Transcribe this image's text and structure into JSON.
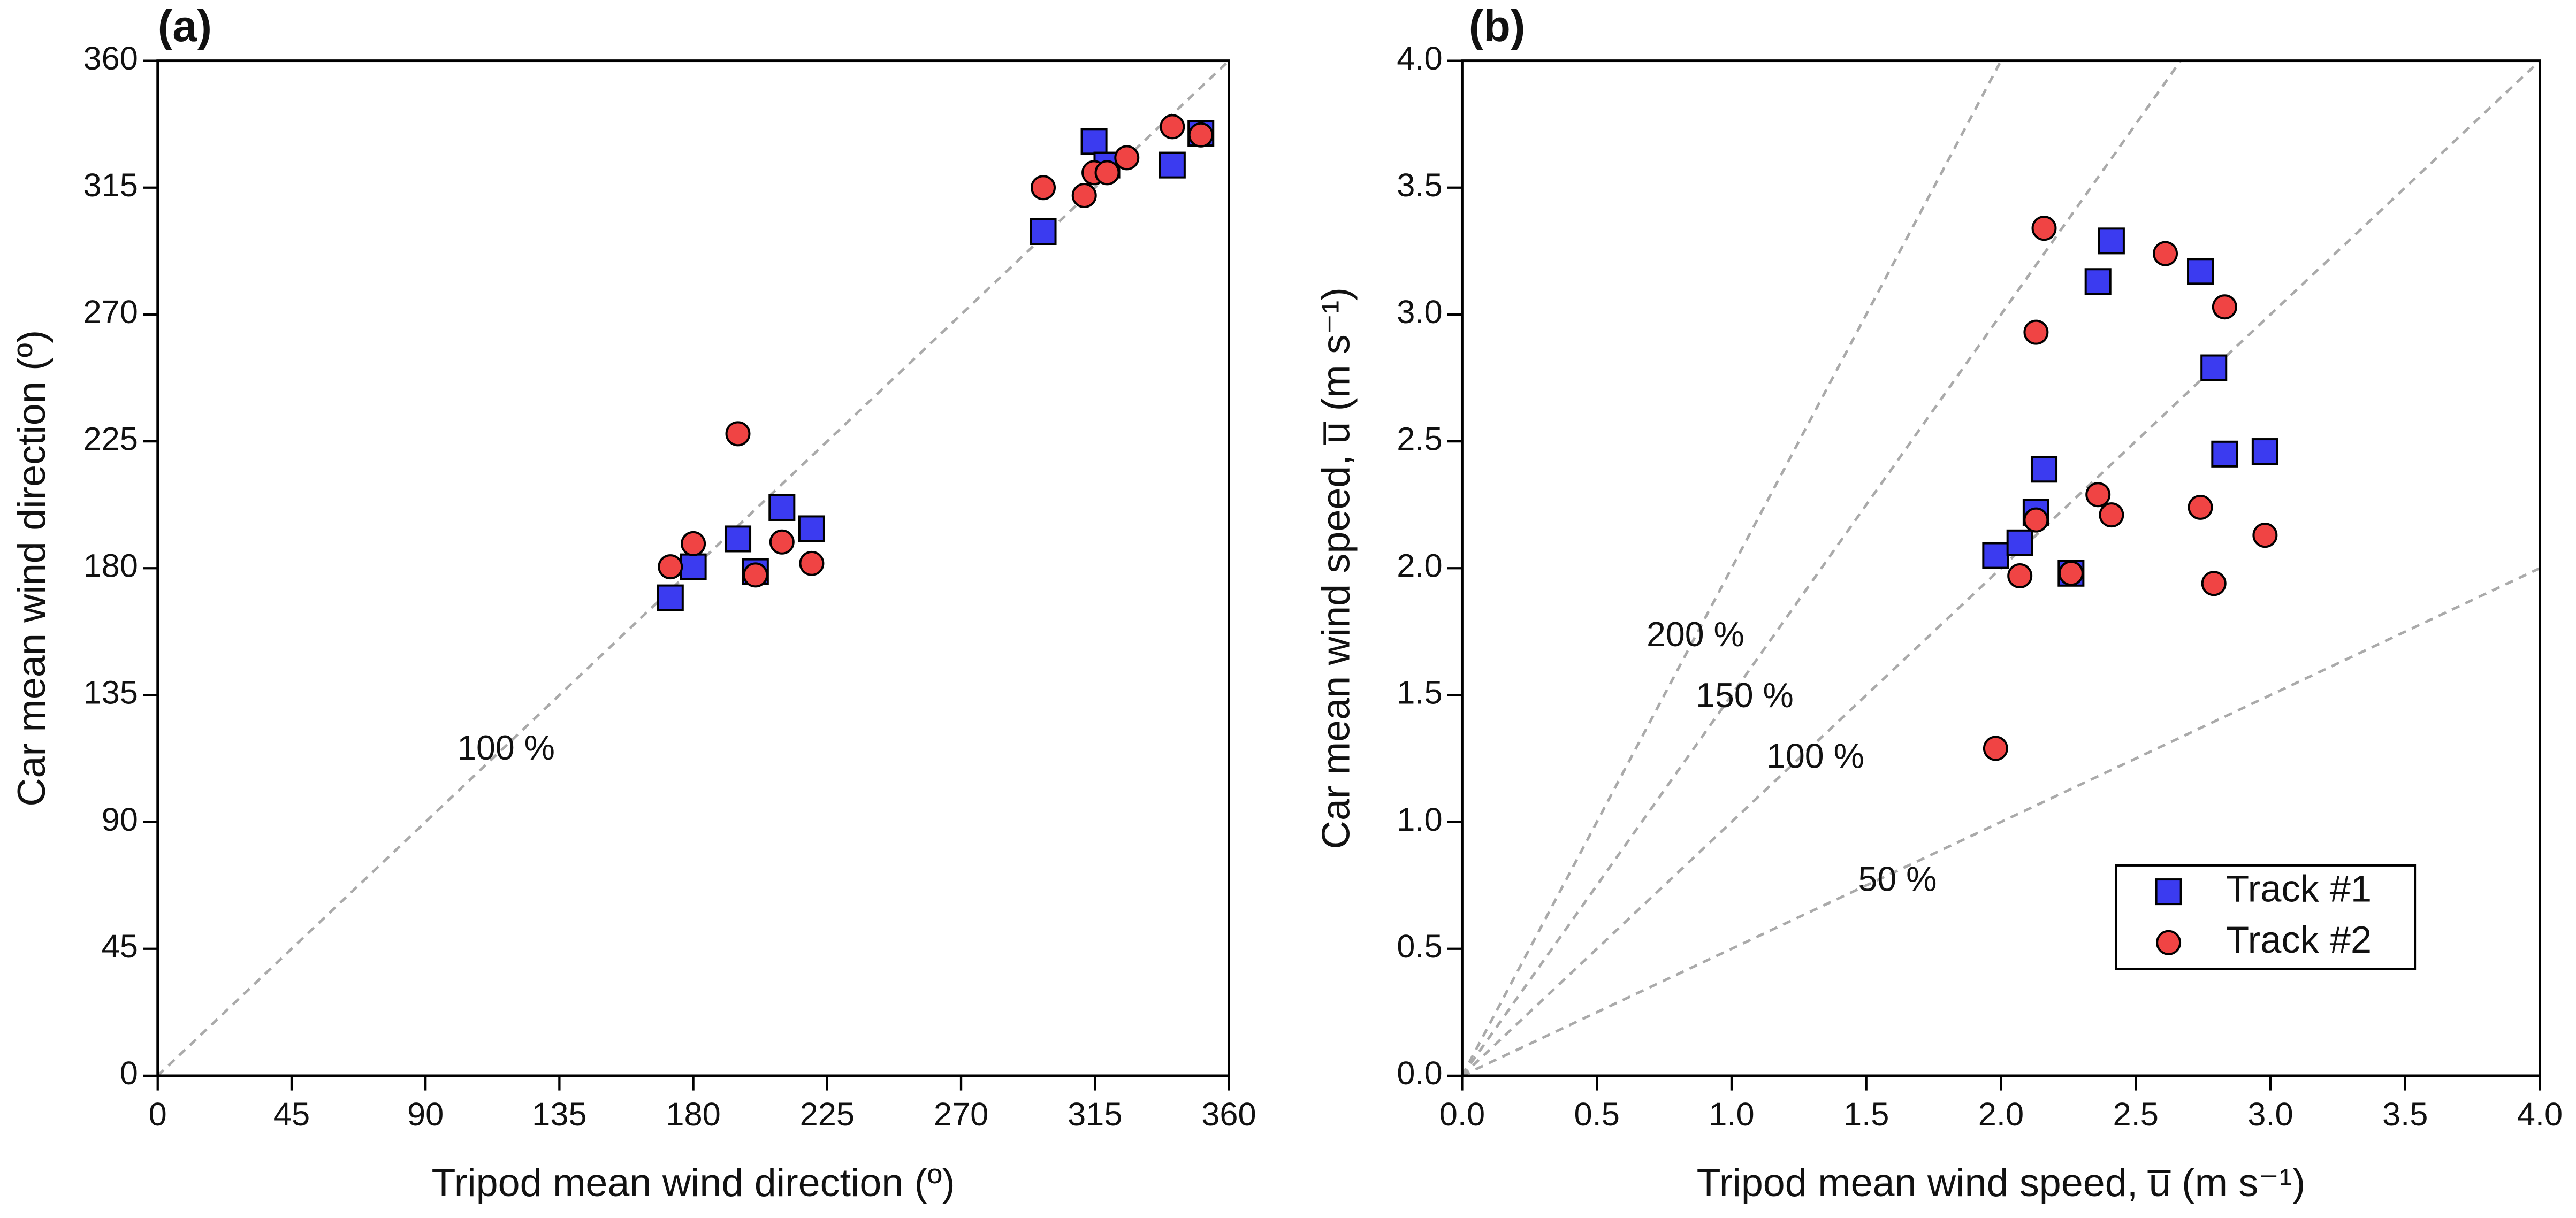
{
  "chart_data": [
    {
      "type": "scatter",
      "panel_label": "(a)",
      "xlabel": "Tripod mean wind direction (º)",
      "ylabel": "Car mean wind direction (º)",
      "xlim": [
        0,
        360
      ],
      "ylim": [
        0,
        360
      ],
      "xticks": [
        0,
        45,
        90,
        135,
        180,
        225,
        270,
        315,
        360
      ],
      "yticks": [
        0,
        45,
        90,
        135,
        180,
        225,
        270,
        315,
        360
      ],
      "reference_lines": [
        {
          "slope": 1,
          "label": "100 %"
        }
      ],
      "series": [
        {
          "name": "Track #1",
          "marker": "square",
          "color": "#3b3bf0",
          "x": [
            172.3,
            180,
            195,
            200.9,
            209.8,
            219.8,
            297.6,
            314.7,
            319,
            341,
            350.6
          ],
          "values": [
            169.5,
            180.5,
            190.4,
            178.8,
            201.5,
            194,
            299.4,
            331.4,
            323,
            323,
            334.3
          ]
        },
        {
          "name": "Track #2",
          "marker": "circle",
          "color": "#f04444",
          "x": [
            172.3,
            180,
            195,
            200.9,
            209.8,
            219.8,
            297.6,
            311.4,
            314.7,
            319.1,
            325.7,
            341,
            350.6
          ],
          "values": [
            180.5,
            188.7,
            227.7,
            177.6,
            189.3,
            181.7,
            315,
            312.2,
            320.3,
            320.3,
            325.6,
            336.6,
            333.7
          ]
        }
      ]
    },
    {
      "type": "scatter",
      "panel_label": "(b)",
      "xlabel": "Tripod mean wind speed, u̅ (m s⁻¹)",
      "ylabel": "Car mean wind speed, u̅ (m s⁻¹)",
      "xlim": [
        0,
        4
      ],
      "ylim": [
        0,
        4
      ],
      "xticks": [
        {
          "value": 0,
          "label": "0.0"
        },
        0.5,
        {
          "value": 1,
          "label": "1.0"
        },
        1.5,
        {
          "value": 2,
          "label": "2.0"
        },
        2.5,
        {
          "value": 3,
          "label": "3.0"
        },
        3.5,
        {
          "value": 4,
          "label": "4.0"
        }
      ],
      "yticks": [
        {
          "value": 0,
          "label": "0.0"
        },
        0.5,
        {
          "value": 1,
          "label": "1.0"
        },
        1.5,
        {
          "value": 2,
          "label": "2.0"
        },
        2.5,
        {
          "value": 3,
          "label": "3.0"
        },
        3.5,
        {
          "value": 4,
          "label": "4.0"
        }
      ],
      "reference_lines": [
        {
          "slope": 2,
          "label": "200 %"
        },
        {
          "slope": 1.5,
          "label": "150 %"
        },
        {
          "slope": 1,
          "label": "100 %"
        },
        {
          "slope": 0.5,
          "label": "50 %"
        }
      ],
      "legend": "lower right",
      "series": [
        {
          "name": "Track #1",
          "marker": "square",
          "color": "#3b3bf0",
          "x": [
            1.98,
            2.07,
            2.13,
            2.16,
            2.26,
            2.36,
            2.41,
            2.74,
            2.79,
            2.83,
            2.98
          ],
          "values": [
            2.05,
            2.1,
            2.22,
            2.39,
            1.98,
            3.13,
            3.29,
            3.17,
            2.79,
            2.45,
            2.46
          ]
        },
        {
          "name": "Track #2",
          "marker": "circle",
          "color": "#f04444",
          "x": [
            1.98,
            2.07,
            2.13,
            2.13,
            2.16,
            2.26,
            2.36,
            2.41,
            2.61,
            2.74,
            2.79,
            2.83,
            2.98
          ],
          "values": [
            1.29,
            1.97,
            2.93,
            2.19,
            3.34,
            1.98,
            2.29,
            2.21,
            3.24,
            2.24,
            1.94,
            3.03,
            2.13
          ]
        }
      ]
    }
  ]
}
